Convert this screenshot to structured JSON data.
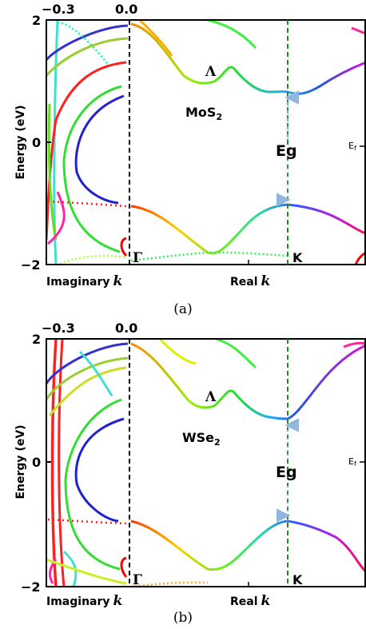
{
  "chart_data": [
    {
      "type": "line",
      "panel": "(a)",
      "material_main": "MoS",
      "material_sub": "2",
      "ylabel": "Energy (eV)",
      "ylim": [
        -2,
        2
      ],
      "y_ticks": [
        "2",
        "0",
        "−2"
      ],
      "top_ticks": [
        "−0.3",
        "0.0"
      ],
      "xlabel_imag_text": "Imaginary",
      "xlabel_real_text": "Real",
      "xlabel_k": "k",
      "points": {
        "gamma": "Γ",
        "lambda": "Λ",
        "k": "K"
      },
      "gap_label": "Eg",
      "fermi_main": "E",
      "fermi_sub": "f",
      "vbm_energy": -1.0,
      "cbm_energy": 0.83,
      "lambda_energy": 0.97,
      "colors": {
        "gap_arrow": "#8fb8dc",
        "k_line": "#228b22"
      },
      "series": [
        {
          "color": "#ff0000",
          "x": [
            0.0,
            0.25,
            0.45,
            0.56,
            0.62,
            0.7,
            0.8,
            0.9,
            1.0
          ],
          "y": [
            -0.98,
            -1.05,
            -1.55,
            -1.78,
            -1.7,
            -1.45,
            -1.2,
            -1.02,
            -0.98
          ]
        },
        {
          "color": "#ff0000",
          "x": [
            0.0,
            0.2,
            0.45,
            0.6,
            0.75,
            0.9,
            1.0
          ],
          "y": [
            2.05,
            1.6,
            1.0,
            0.97,
            0.95,
            0.84,
            0.83
          ]
        }
      ]
    },
    {
      "type": "line",
      "panel": "(b)",
      "material_main": "WSe",
      "material_sub": "2",
      "ylabel": "Energy (eV)",
      "ylim": [
        -2,
        2
      ],
      "y_ticks": [
        "2",
        "0",
        "−2"
      ],
      "top_ticks": [
        "−0.3",
        "0.0"
      ],
      "xlabel_imag_text": "Imaginary",
      "xlabel_real_text": "Real",
      "xlabel_k": "k",
      "points": {
        "gamma": "Γ",
        "lambda": "Λ",
        "k": "K"
      },
      "gap_label": "Eg",
      "fermi_main": "E",
      "fermi_sub": "f",
      "vbm_energy": -0.92,
      "cbm_energy": 0.72,
      "lambda_energy": 0.86,
      "colors": {
        "gap_arrow": "#8fb8dc",
        "k_line": "#228b22"
      },
      "series": [
        {
          "color": "#ff0000",
          "x": [
            0.0,
            0.25,
            0.45,
            0.56,
            0.62,
            0.7,
            0.8,
            0.9,
            1.0
          ],
          "y": [
            -0.98,
            -1.05,
            -1.55,
            -1.78,
            -1.7,
            -1.45,
            -1.2,
            -1.02,
            -0.92
          ]
        },
        {
          "color": "#ff0000",
          "x": [
            0.0,
            0.2,
            0.45,
            0.6,
            0.75,
            0.9,
            1.0
          ],
          "y": [
            2.05,
            1.5,
            0.9,
            0.86,
            0.85,
            0.73,
            0.72
          ]
        }
      ]
    }
  ]
}
